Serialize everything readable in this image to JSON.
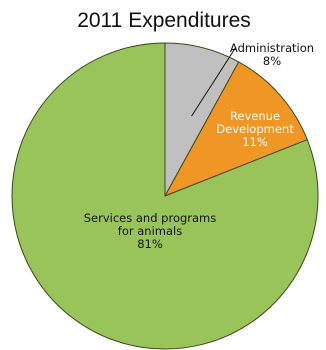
{
  "chart_data": {
    "type": "pie",
    "title": "2011 Expenditures",
    "slices": [
      {
        "label_lines": [
          "Administration",
          "8%"
        ],
        "value": 8,
        "color": "#c0c0c0",
        "label_color": "#111111"
      },
      {
        "label_lines": [
          "Revenue",
          "Development",
          "11%"
        ],
        "value": 11,
        "color": "#ef9624",
        "label_color": "#ffffff"
      },
      {
        "label_lines": [
          "Services and programs",
          "for animals",
          "81%"
        ],
        "value": 81,
        "color": "#99c45a",
        "label_color": "#111111"
      }
    ],
    "start_angle": "12 o'clock",
    "direction": "clockwise",
    "slice_border_color": "#3a4a1e"
  }
}
